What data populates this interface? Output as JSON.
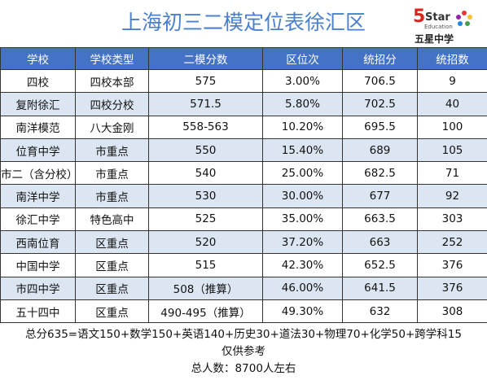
{
  "header": {
    "title": "上海初三二模定位表徐汇区",
    "logo": {
      "number": "5",
      "word": "Star",
      "sub": "Education",
      "name": "五星中学"
    }
  },
  "table": {
    "columns": [
      "学校",
      "学校类型",
      "二模分数",
      "区位次",
      "统招分",
      "统招数"
    ],
    "rows": [
      [
        "四校",
        "四校本部",
        "575",
        "3.00%",
        "706.5",
        "9"
      ],
      [
        "复附徐汇",
        "四校分校",
        "571.5",
        "5.80%",
        "702.5",
        "40"
      ],
      [
        "南洋模范",
        "八大金刚",
        "558-563",
        "10.20%",
        "695.5",
        "100"
      ],
      [
        "位育中学",
        "市重点",
        "550",
        "15.40%",
        "689",
        "105"
      ],
      [
        "市二（含分校）",
        "市重点",
        "540",
        "25.00%",
        "682.5",
        "71"
      ],
      [
        "南洋中学",
        "市重点",
        "530",
        "30.00%",
        "677",
        "92"
      ],
      [
        "徐汇中学",
        "特色高中",
        "525",
        "35.00%",
        "663.5",
        "303"
      ],
      [
        "西南位育",
        "区重点",
        "520",
        "37.20%",
        "663",
        "252"
      ],
      [
        "中国中学",
        "区重点",
        "515",
        "42.30%",
        "652.5",
        "376"
      ],
      [
        "市四中学",
        "区重点",
        "508（推算）",
        "46.00%",
        "641.5",
        "376"
      ],
      [
        "五十四中",
        "区重点",
        "490-495（推算）",
        "49.30%",
        "632",
        "308"
      ]
    ]
  },
  "footer": [
    "总分635=语文150+数学150+英语140+历史30+道法30+物理70+化学50+跨学科15",
    "仅供参考",
    "总人数：8700人左右"
  ]
}
